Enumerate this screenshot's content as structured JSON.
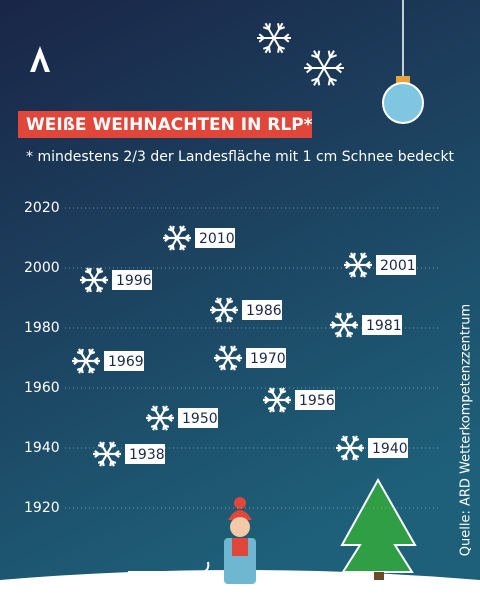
{
  "chart_data": {
    "type": "scatter",
    "title": "WEIßE WEIHNACHTEN IN RLP*",
    "subtitle": "* mindestens 2/3 der Landesfläche mit 1 cm Schnee bedeckt",
    "source": "Quelle: ARD Wetterkompetenzzentrum",
    "values": [
      2010,
      1996,
      1986,
      2001,
      1981,
      1969,
      1970,
      1950,
      1956,
      1940,
      1938
    ],
    "color": "#ffffff",
    "ylim": [
      1920,
      2020
    ],
    "yticks": [
      1920,
      1940,
      1960,
      1980,
      2000,
      2020
    ],
    "grid": true
  }
}
